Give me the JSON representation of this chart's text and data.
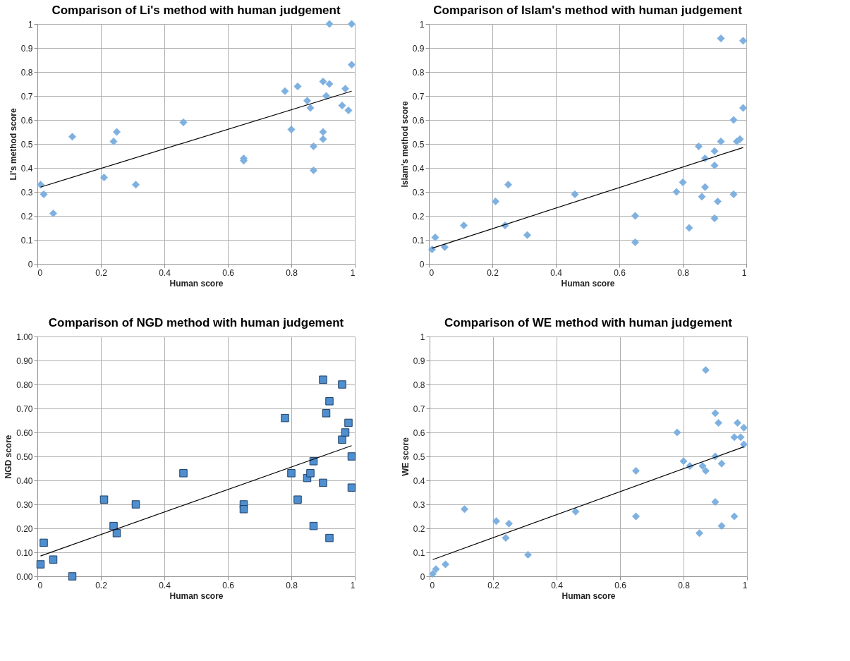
{
  "chart_data": [
    {
      "type": "scatter",
      "title": "Comparison of Li's method with human judgement",
      "xlabel": "Human score",
      "ylabel": "Li's method score",
      "xlim": [
        0,
        1
      ],
      "ylim": [
        0,
        1
      ],
      "xticks": [
        0,
        0.2,
        0.4,
        0.6,
        0.8,
        1
      ],
      "yticks": [
        0,
        0.1,
        0.2,
        0.3,
        0.4,
        0.5,
        0.6,
        0.7,
        0.8,
        0.9,
        1
      ],
      "grid": true,
      "series": [
        {
          "marker": "diamond",
          "color": "#7eb0e0",
          "x": [
            0.01,
            0.02,
            0.05,
            0.11,
            0.21,
            0.24,
            0.25,
            0.31,
            0.46,
            0.65,
            0.65,
            0.78,
            0.8,
            0.82,
            0.85,
            0.86,
            0.87,
            0.87,
            0.9,
            0.9,
            0.9,
            0.91,
            0.92,
            0.92,
            0.96,
            0.97,
            0.98,
            0.99,
            0.99
          ],
          "values": [
            0.33,
            0.29,
            0.21,
            0.53,
            0.36,
            0.51,
            0.55,
            0.33,
            0.59,
            0.44,
            0.43,
            0.72,
            0.56,
            0.74,
            0.68,
            0.65,
            0.49,
            0.39,
            0.76,
            0.55,
            0.52,
            0.7,
            0.75,
            1.0,
            0.66,
            0.73,
            0.64,
            0.83,
            1.0
          ]
        },
        {
          "type": "line",
          "marker": "none",
          "color": "#000000",
          "x": [
            0.01,
            0.99
          ],
          "values": [
            0.32,
            0.72
          ]
        }
      ]
    },
    {
      "type": "scatter",
      "title": "Comparison of Islam's method with human judgement",
      "xlabel": "Human score",
      "ylabel": "Islam's method score",
      "xlim": [
        0,
        1
      ],
      "ylim": [
        0,
        1
      ],
      "xticks": [
        0,
        0.2,
        0.4,
        0.6,
        0.8,
        1
      ],
      "yticks": [
        0,
        0.1,
        0.2,
        0.3,
        0.4,
        0.5,
        0.6,
        0.7,
        0.8,
        0.9,
        1
      ],
      "grid": true,
      "series": [
        {
          "marker": "diamond",
          "color": "#7eb0e0",
          "x": [
            0.01,
            0.02,
            0.05,
            0.11,
            0.21,
            0.24,
            0.25,
            0.31,
            0.46,
            0.65,
            0.65,
            0.78,
            0.8,
            0.82,
            0.85,
            0.86,
            0.87,
            0.87,
            0.9,
            0.9,
            0.9,
            0.91,
            0.92,
            0.92,
            0.96,
            0.96,
            0.97,
            0.98,
            0.99,
            0.99
          ],
          "values": [
            0.06,
            0.11,
            0.07,
            0.16,
            0.26,
            0.16,
            0.33,
            0.12,
            0.29,
            0.2,
            0.09,
            0.3,
            0.34,
            0.15,
            0.49,
            0.28,
            0.44,
            0.32,
            0.47,
            0.41,
            0.19,
            0.26,
            0.51,
            0.94,
            0.6,
            0.29,
            0.51,
            0.52,
            0.65,
            0.93
          ]
        },
        {
          "type": "line",
          "marker": "none",
          "color": "#000000",
          "x": [
            0.01,
            0.99
          ],
          "values": [
            0.065,
            0.485
          ]
        }
      ]
    },
    {
      "type": "scatter",
      "title": "Comparison of NGD method with human judgement",
      "xlabel": "Human score",
      "ylabel": "NGD score",
      "xlim": [
        0,
        1
      ],
      "ylim": [
        0,
        1
      ],
      "xticks": [
        0,
        0.2,
        0.4,
        0.6,
        0.8,
        1
      ],
      "yticks": [
        {
          "value": 0,
          "label": "0.00"
        },
        {
          "value": 0.1,
          "label": "0.10"
        },
        {
          "value": 0.2,
          "label": "0.20"
        },
        {
          "value": 0.3,
          "label": "0.30"
        },
        {
          "value": 0.4,
          "label": "0.40"
        },
        {
          "value": 0.5,
          "label": "0.50"
        },
        {
          "value": 0.6,
          "label": "0.60"
        },
        {
          "value": 0.7,
          "label": "0.70"
        },
        {
          "value": 0.8,
          "label": "0.80"
        },
        {
          "value": 0.9,
          "label": "0.90"
        },
        {
          "value": 1,
          "label": "1.00"
        }
      ],
      "grid": true,
      "series": [
        {
          "marker": "square",
          "color": "#4f8fcf",
          "x": [
            0.01,
            0.02,
            0.05,
            0.11,
            0.21,
            0.24,
            0.25,
            0.31,
            0.46,
            0.65,
            0.65,
            0.78,
            0.8,
            0.82,
            0.85,
            0.86,
            0.87,
            0.87,
            0.9,
            0.9,
            0.91,
            0.92,
            0.92,
            0.96,
            0.96,
            0.97,
            0.98,
            0.99,
            0.99
          ],
          "values": [
            0.05,
            0.14,
            0.07,
            0.0,
            0.32,
            0.21,
            0.18,
            0.3,
            0.43,
            0.3,
            0.28,
            0.66,
            0.43,
            0.32,
            0.41,
            0.43,
            0.48,
            0.21,
            0.82,
            0.39,
            0.68,
            0.73,
            0.16,
            0.57,
            0.8,
            0.6,
            0.64,
            0.5,
            0.37
          ]
        },
        {
          "type": "line",
          "marker": "none",
          "color": "#000000",
          "x": [
            0.01,
            0.99
          ],
          "values": [
            0.085,
            0.545
          ]
        }
      ]
    },
    {
      "type": "scatter",
      "title": "Comparison of WE method with human judgement",
      "xlabel": "Human score",
      "ylabel": "WE score",
      "xlim": [
        0,
        1
      ],
      "ylim": [
        0,
        1
      ],
      "xticks": [
        0,
        0.2,
        0.4,
        0.6,
        0.8,
        1
      ],
      "yticks": [
        0,
        0.1,
        0.2,
        0.3,
        0.4,
        0.5,
        0.6,
        0.7,
        0.8,
        0.9,
        1
      ],
      "grid": true,
      "series": [
        {
          "marker": "diamond",
          "color": "#7eb0e0",
          "x": [
            0.01,
            0.02,
            0.05,
            0.11,
            0.21,
            0.24,
            0.25,
            0.31,
            0.46,
            0.65,
            0.65,
            0.78,
            0.8,
            0.82,
            0.85,
            0.86,
            0.87,
            0.87,
            0.9,
            0.9,
            0.9,
            0.91,
            0.92,
            0.92,
            0.96,
            0.96,
            0.97,
            0.98,
            0.99,
            0.99
          ],
          "values": [
            0.01,
            0.03,
            0.05,
            0.28,
            0.23,
            0.16,
            0.22,
            0.09,
            0.27,
            0.44,
            0.25,
            0.6,
            0.48,
            0.46,
            0.18,
            0.46,
            0.44,
            0.86,
            0.68,
            0.5,
            0.31,
            0.64,
            0.47,
            0.21,
            0.58,
            0.25,
            0.64,
            0.58,
            0.62,
            0.55
          ]
        },
        {
          "type": "line",
          "marker": "none",
          "color": "#000000",
          "x": [
            0.01,
            0.99
          ],
          "values": [
            0.07,
            0.54
          ]
        }
      ]
    }
  ]
}
